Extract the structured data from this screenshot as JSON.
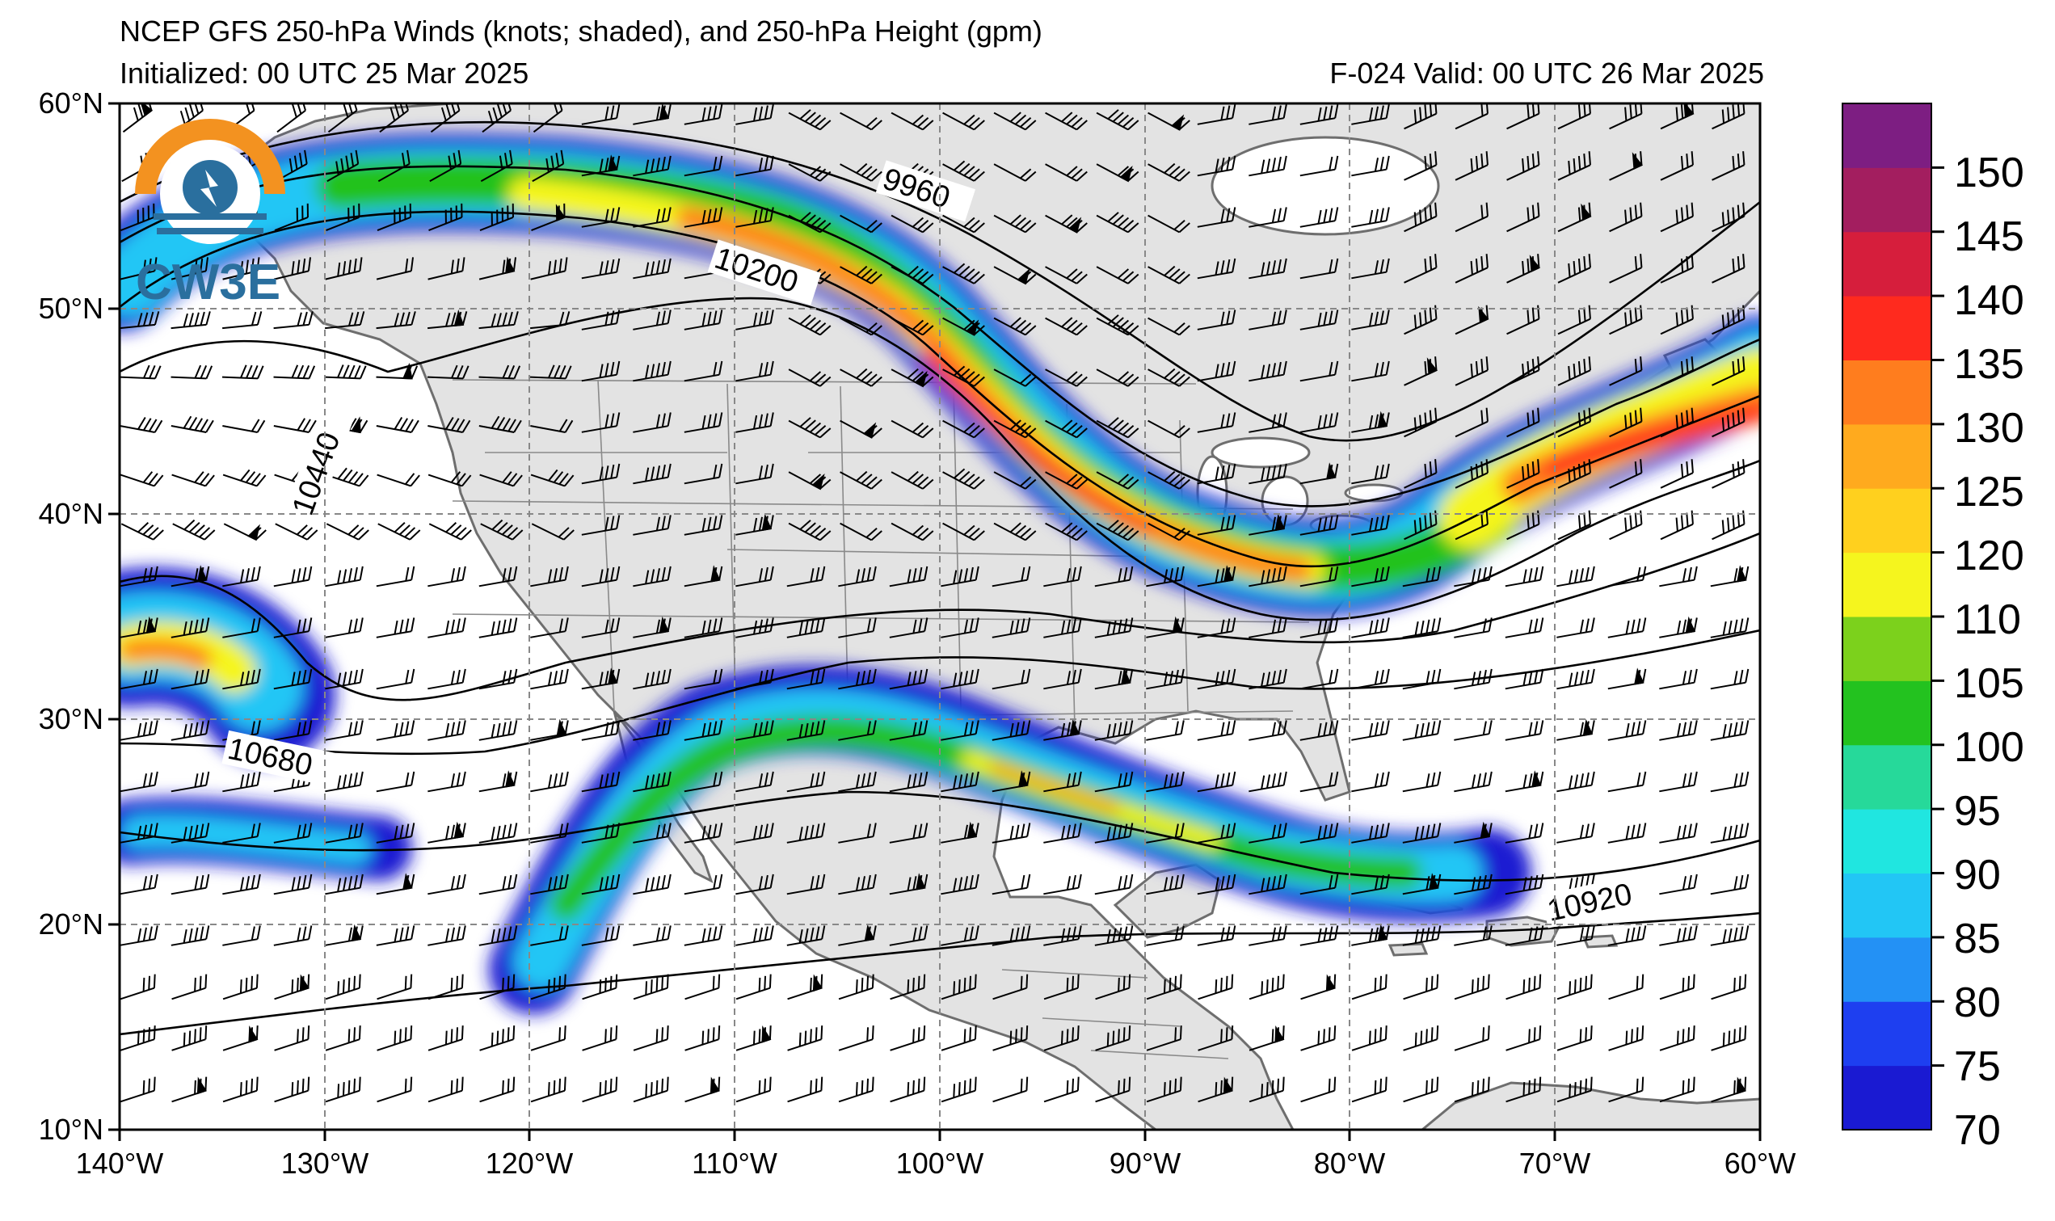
{
  "header": {
    "title": "NCEP GFS 250-hPa Winds (knots; shaded), and 250-hPa Height (gpm)",
    "initialized": "Initialized: 00 UTC 25 Mar 2025",
    "valid": "F-024  Valid: 00 UTC 26 Mar 2025"
  },
  "logo": {
    "text": "CW3E"
  },
  "map": {
    "lat_labels": [
      "60°N",
      "50°N",
      "40°N",
      "30°N",
      "20°N",
      "10°N"
    ],
    "lon_labels": [
      "140°W",
      "130°W",
      "120°W",
      "110°W",
      "100°W",
      "90°W",
      "80°W",
      "70°W",
      "60°W"
    ],
    "contour_labels": [
      "9960",
      "10200",
      "10440",
      "10680",
      "10920"
    ],
    "extent": {
      "lon": [
        -140,
        -60
      ],
      "lat": [
        10,
        60
      ]
    },
    "colors": {
      "land": "#e3e3e3",
      "ocean": "#ffffff",
      "coast": "#6e6e6e",
      "grid": "#888888"
    }
  },
  "colorbar": {
    "levels": [
      70,
      75,
      80,
      85,
      90,
      95,
      100,
      105,
      110,
      120,
      125,
      130,
      135,
      140,
      145,
      150,
      155
    ],
    "labels": [
      "150",
      "145",
      "140",
      "135",
      "130",
      "125",
      "120",
      "110",
      "105",
      "100",
      "95",
      "90",
      "85",
      "80",
      "75",
      "70"
    ],
    "colors": [
      "#1a1ad2",
      "#1e3ff0",
      "#2391f5",
      "#22c6f5",
      "#20e6e0",
      "#26d99a",
      "#23c21f",
      "#7cd11c",
      "#f5f51e",
      "#ffd01e",
      "#ffaa1e",
      "#ff7d1e",
      "#ff2a1e",
      "#d61e3c",
      "#a31e5f",
      "#7d1e82"
    ]
  }
}
